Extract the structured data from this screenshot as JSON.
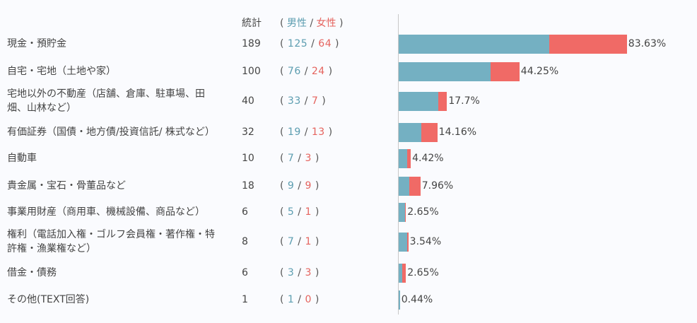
{
  "header": {
    "total_label": "統計",
    "paren_open": "(",
    "paren_close": ")",
    "male_label": "男性",
    "female_label": "女性",
    "sep": "/"
  },
  "colors": {
    "male": "#74b0c2",
    "female": "#f06a66"
  },
  "chart_data": {
    "type": "bar",
    "orientation": "horizontal",
    "stacked": true,
    "xlim": [
      0,
      100
    ],
    "legend": "header",
    "categories": [
      "現金・預貯金",
      "自宅・宅地（土地や家）",
      "宅地以外の不動産（店舗、倉庫、駐車場、田畑、山林など）",
      "有価証券（国債・地方債/投資信託/ 株式など）",
      "自動車",
      "貴金属・宝石・骨董品など",
      "事業用財産（商用車、機械設備、商品など）",
      "権利（電話加入権・ゴルフ会員権・著作権・特許権・漁業権など）",
      "借金・債務",
      "その他(TEXT回答)"
    ],
    "rows": [
      {
        "label_lines": [
          "現金・預貯金"
        ],
        "total": "189",
        "male": "125",
        "female": "64",
        "pct": "83.63%",
        "male_pct": 55.31,
        "female_pct": 28.32
      },
      {
        "label_lines": [
          "自宅・宅地（土地や家）"
        ],
        "total": "100",
        "male": "76",
        "female": "24",
        "pct": "44.25%",
        "male_pct": 33.63,
        "female_pct": 10.62
      },
      {
        "label_lines": [
          "宅地以外の不動産（店舗、倉庫、駐車場、田",
          "畑、山林など）"
        ],
        "total": "40",
        "male": "33",
        "female": "7",
        "pct": "17.7%",
        "male_pct": 14.6,
        "female_pct": 3.1
      },
      {
        "label_lines": [
          "有価証券（国債・地方債/投資信託/ 株式など）"
        ],
        "total": "32",
        "male": "19",
        "female": "13",
        "pct": "14.16%",
        "male_pct": 8.41,
        "female_pct": 5.75
      },
      {
        "label_lines": [
          "自動車"
        ],
        "total": "10",
        "male": "7",
        "female": "3",
        "pct": "4.42%",
        "male_pct": 3.1,
        "female_pct": 1.33
      },
      {
        "label_lines": [
          "貴金属・宝石・骨董品など"
        ],
        "total": "18",
        "male": "9",
        "female": "9",
        "pct": "7.96%",
        "male_pct": 3.98,
        "female_pct": 3.98
      },
      {
        "label_lines": [
          "事業用財産（商用車、機械設備、商品など）"
        ],
        "total": "6",
        "male": "5",
        "female": "1",
        "pct": "2.65%",
        "male_pct": 2.21,
        "female_pct": 0.44
      },
      {
        "label_lines": [
          "権利（電話加入権・ゴルフ会員権・著作権・特",
          "許権・漁業権など）"
        ],
        "total": "8",
        "male": "7",
        "female": "1",
        "pct": "3.54%",
        "male_pct": 3.1,
        "female_pct": 0.44
      },
      {
        "label_lines": [
          "借金・債務"
        ],
        "total": "6",
        "male": "3",
        "female": "3",
        "pct": "2.65%",
        "male_pct": 1.33,
        "female_pct": 1.33
      },
      {
        "label_lines": [
          "その他(TEXT回答)"
        ],
        "total": "1",
        "male": "1",
        "female": "0",
        "pct": "0.44%",
        "male_pct": 0.44,
        "female_pct": 0
      }
    ]
  }
}
